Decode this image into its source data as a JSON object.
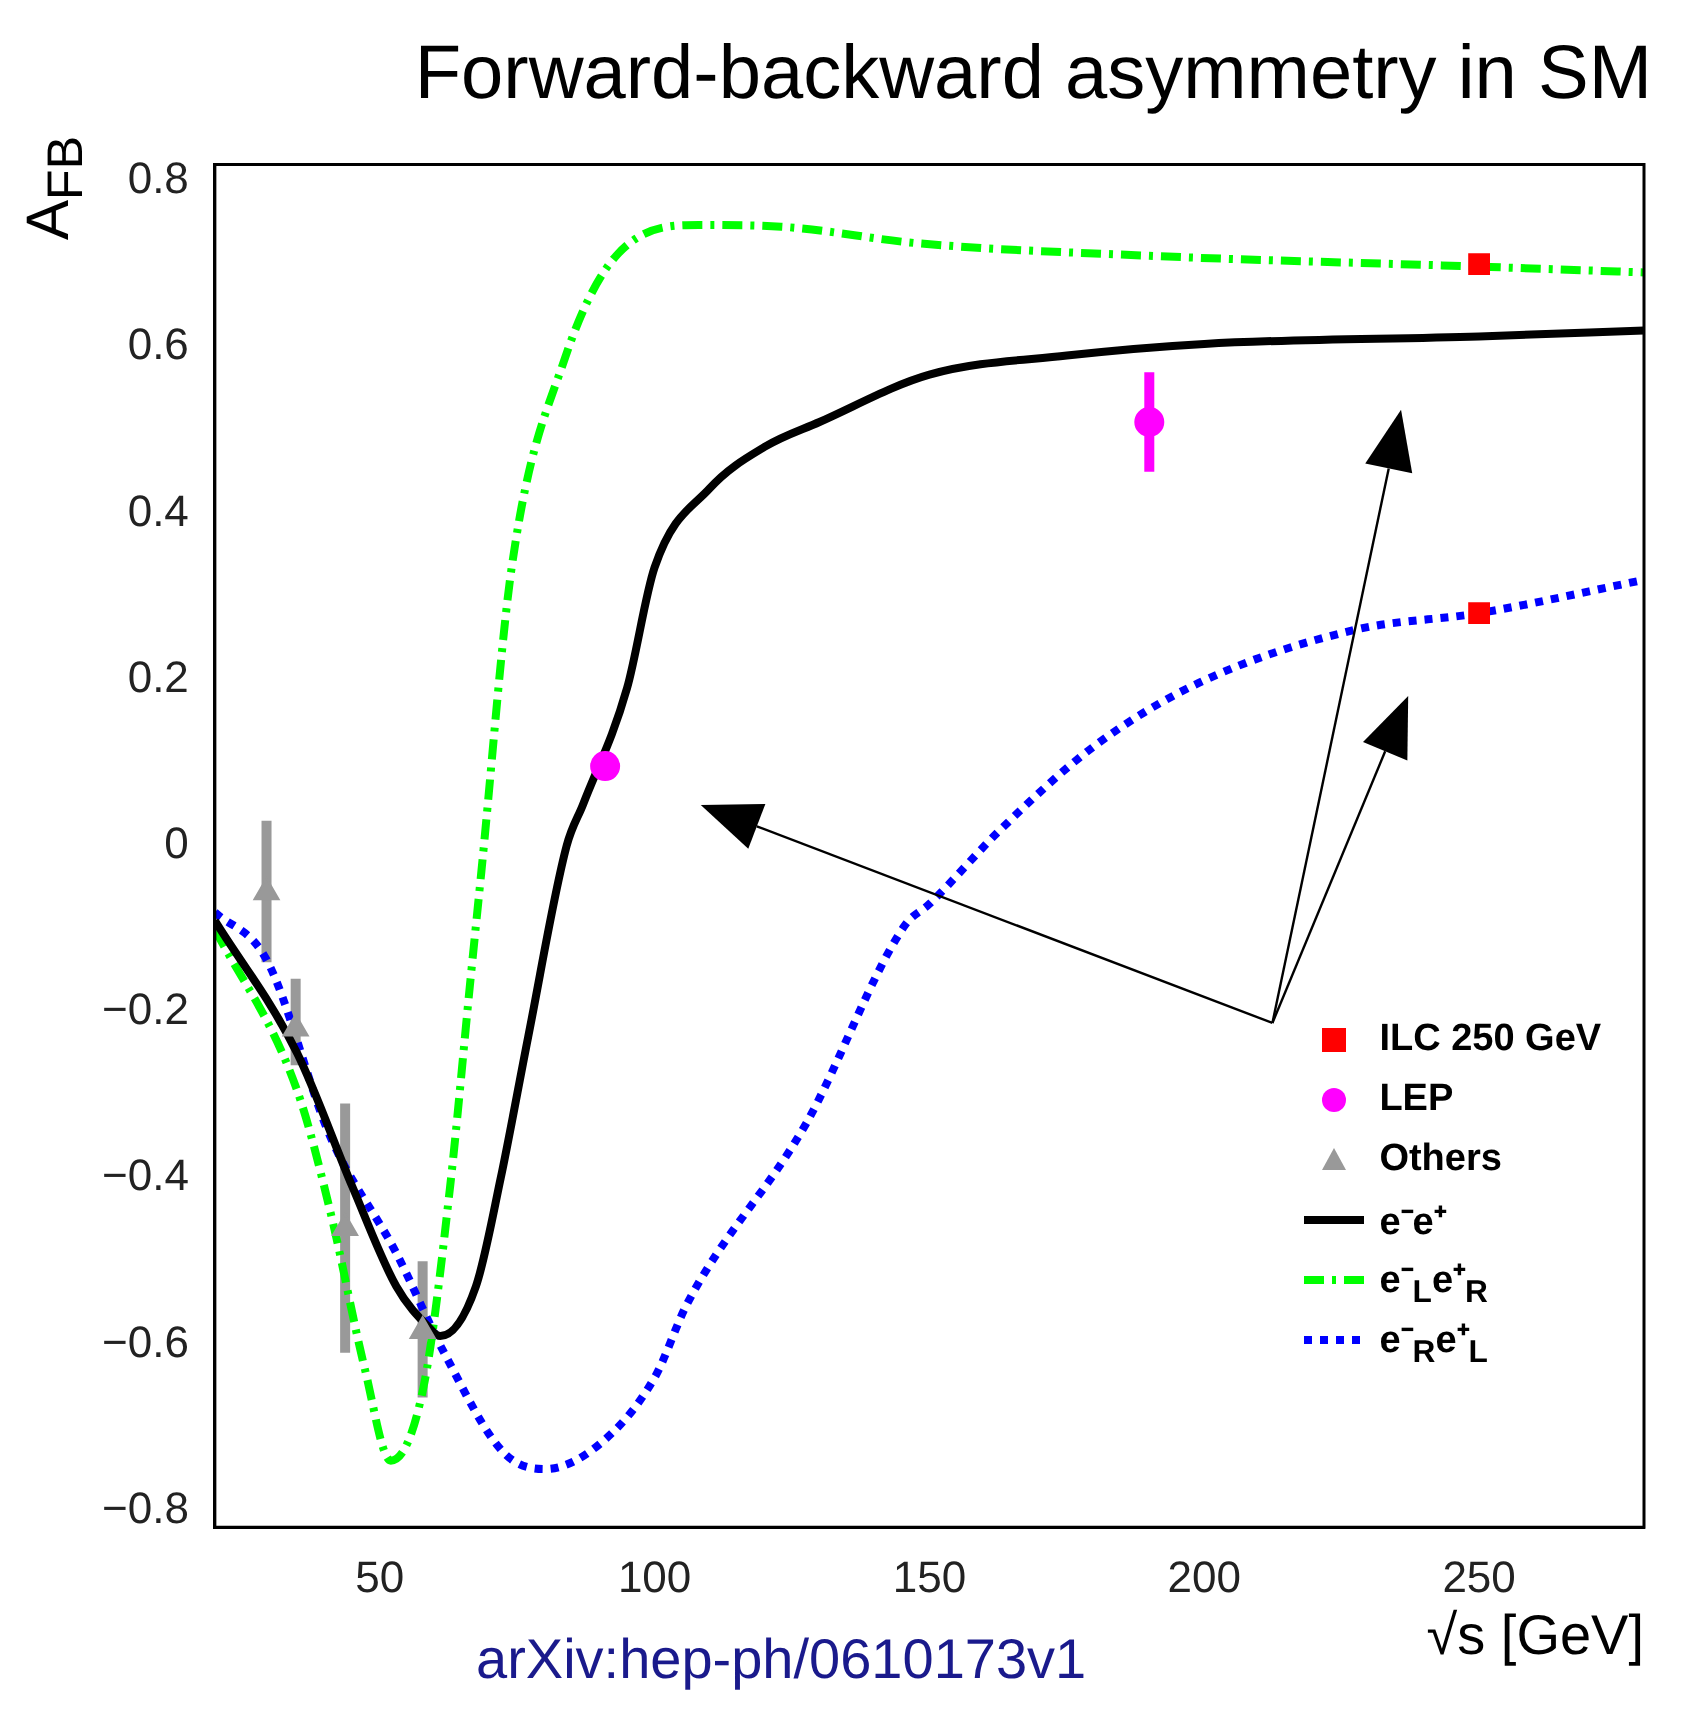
{
  "chart_data": {
    "type": "line",
    "title": "Forward-backward asymmetry in SM",
    "xlabel": "√s [GeV]",
    "ylabel": "A$_{FB}$",
    "annotations": [
      "arXiv:hep-ph/0610173v1"
    ],
    "xlim": [
      20,
      280
    ],
    "ylim": [
      -0.82,
      0.82
    ],
    "xticks": [
      50,
      100,
      150,
      200,
      250
    ],
    "yticks": [
      {
        "value": -0.8,
        "label": "−0.8"
      },
      {
        "value": -0.6,
        "label": "−0.6"
      },
      {
        "value": -0.4,
        "label": "−0.4"
      },
      {
        "value": -0.2,
        "label": "−0.2"
      },
      0,
      0.2,
      0.4,
      0.6,
      0.8
    ],
    "grid": false,
    "legend": "bottom right",
    "series": [
      {
        "name": "ILC 250 GeV",
        "type": "scatter",
        "marker": "square",
        "color": "#ff0000",
        "x": [
          250,
          250
        ],
        "values": [
          0.7,
          0.28
        ]
      },
      {
        "name": "LEP",
        "type": "scatter",
        "marker": "circle",
        "color": "#ff00ff",
        "x": [
          91,
          190
        ],
        "values": [
          0.096,
          0.51
        ],
        "errors": [
          null,
          0.06
        ]
      },
      {
        "name": "Others",
        "type": "scatter",
        "marker": "triangle",
        "color": "#999999",
        "x": [
          29.4,
          34.7,
          43.7,
          57.8
        ],
        "values": [
          -0.056,
          -0.22,
          -0.46,
          -0.584
        ],
        "errors": [
          [
            -0.14,
            0.03
          ],
          [
            -0.264,
            -0.16
          ],
          [
            -0.61,
            -0.31
          ],
          [
            -0.664,
            -0.5
          ]
        ]
      },
      {
        "name": "e⁻e⁺",
        "marker": "none",
        "line_style": "solid",
        "color": "#000000",
        "x": [
          20,
          35,
          45,
          53,
          59,
          61,
          67.5,
          72,
          77,
          84,
          87,
          95,
          100,
          110,
          120,
          130,
          150,
          175,
          200,
          250,
          280
        ],
        "values": [
          -0.09,
          -0.25,
          -0.41,
          -0.53,
          -0.58,
          -0.59,
          -0.53,
          -0.4,
          -0.23,
          0,
          0.05,
          0.19,
          0.335,
          0.43,
          0.48,
          0.51,
          0.567,
          0.59,
          0.604,
          0.613,
          0.62
        ]
      },
      {
        "name": "e⁻$_{L}$e⁺$_{R}$",
        "marker": "none",
        "line_style": "dashed",
        "color": "#00ff00",
        "x": [
          20,
          35,
          41,
          47.3,
          52,
          58,
          62.8,
          66.4,
          68.5,
          74,
          83.7,
          93,
          108,
          123,
          148,
          190,
          250,
          280
        ],
        "values": [
          -0.1,
          -0.295,
          -0.44,
          -0.63,
          -0.74,
          -0.65,
          -0.41,
          -0.168,
          -0.03,
          0.335,
          0.587,
          0.71,
          0.747,
          0.745,
          0.725,
          0.71,
          0.697,
          0.69
        ]
      },
      {
        "name": "e⁻$_{R}$e⁺$_{L}$",
        "marker": "none",
        "line_style": "dotted",
        "color": "#0000ff",
        "x": [
          20,
          29.4,
          41,
          53,
          61.7,
          72.5,
          80,
          90,
          100,
          106,
          127.5,
          145.5,
          150,
          163,
          180,
          199,
          227.5,
          250,
          280
        ],
        "values": [
          -0.08,
          -0.137,
          -0.35,
          -0.49,
          -0.61,
          -0.73,
          -0.75,
          -0.72,
          -0.64,
          -0.55,
          -0.335,
          -0.096,
          -0.07,
          0.02,
          0.12,
          0.196,
          0.26,
          0.28,
          0.32
        ]
      }
    ]
  }
}
